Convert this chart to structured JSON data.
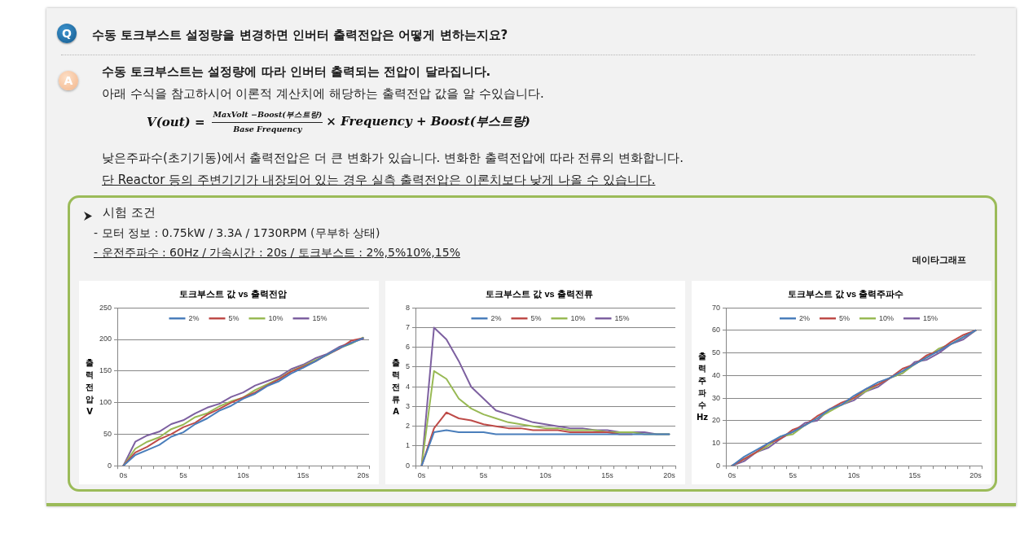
{
  "chart_data": [
    {
      "type": "other",
      "title": "수동 토크부스트 설정량을 변경하면 인버터 출력전압은 어떻게 변하는지요?",
      "subtitle": "수동 토크부스트는 설정량에 따라 인버터 출력되는 전압이 달라집니다.",
      "annotations": [
        "Q",
        "A",
        "아래 수식을 참고하시어 이론적 계산치에 해당하는 출력전압 값을 알 수있습니다.",
        "V(out) =",
        "MaxVolt −Boost(부스트량)",
        "Base Frequency",
        "× Frequency + Boost(부스트량)",
        "낮은주파수(초기기동)에서 출력전압은 더 큰 변화가 있습니다. 변화한 출력전압에 따라 전류의 변화합니다.",
        "단 Reactor 등의 주변기기가 내장되어 있는 경우 실측 출력전압은 이론치보다 낮게 나올 수 있습니다.",
        "시험 조건",
        "- 모터 정보 : 0.75kW / 3.3A / 1730RPM (무부하 상태)",
        "- 운전주파수 : 60Hz / 가속시간 : 20s / 토크부스트 : 2%,5%10%,15%",
        "데이타그래프"
      ]
    },
    {
      "type": "line",
      "title": "토크부스트 값 vs 출력전압",
      "ylabel": "출력전압 V",
      "categories": [
        "0s",
        null,
        null,
        null,
        null,
        "5s",
        null,
        null,
        null,
        null,
        "10s",
        null,
        null,
        null,
        null,
        "15s",
        null,
        null,
        null,
        null,
        "20s"
      ],
      "series": [
        {
          "name": "2%",
          "color": "#4a7ebb",
          "values": [
            0,
            17,
            25,
            33,
            46,
            53,
            66,
            75,
            87,
            95,
            106,
            114,
            126,
            134,
            146,
            155,
            165,
            176,
            186,
            194,
            202
          ]
        },
        {
          "name": "5%",
          "color": "#be4b48",
          "values": [
            0,
            21,
            30,
            42,
            50,
            61,
            68,
            81,
            90,
            100,
            108,
            116,
            127,
            137,
            149,
            157,
            165,
            176,
            185,
            198,
            202
          ]
        },
        {
          "name": "10%",
          "color": "#98b954",
          "values": [
            0,
            27,
            38,
            45,
            58,
            65,
            77,
            83,
            94,
            102,
            108,
            120,
            129,
            138,
            150,
            158,
            167,
            175,
            186,
            193,
            203
          ]
        },
        {
          "name": "15%",
          "color": "#7d60a0",
          "values": [
            0,
            38,
            48,
            54,
            66,
            72,
            83,
            92,
            98,
            109,
            116,
            127,
            134,
            141,
            153,
            160,
            170,
            177,
            188,
            195,
            201
          ]
        }
      ],
      "ylim": [
        0,
        250
      ],
      "yticks": [
        0,
        50,
        100,
        150,
        200,
        250
      ],
      "grid": "y",
      "legend": "top",
      "marker": "none"
    },
    {
      "type": "line",
      "title": "토크부스트 값 vs 출력전류",
      "ylabel": "출력전류 A",
      "categories": [
        "0s",
        null,
        null,
        null,
        null,
        "5s",
        null,
        null,
        null,
        null,
        "10s",
        null,
        null,
        null,
        null,
        "15s",
        null,
        null,
        null,
        null,
        "20s"
      ],
      "series": [
        {
          "name": "2%",
          "color": "#4a7ebb",
          "values": [
            0,
            1.7,
            1.8,
            1.7,
            1.7,
            1.7,
            1.6,
            1.6,
            1.6,
            1.6,
            1.6,
            1.6,
            1.6,
            1.6,
            1.6,
            1.6,
            1.6,
            1.6,
            1.6,
            1.6,
            1.6
          ]
        },
        {
          "name": "5%",
          "color": "#be4b48",
          "values": [
            0,
            1.9,
            2.7,
            2.4,
            2.3,
            2.1,
            2.0,
            1.9,
            1.9,
            1.8,
            1.8,
            1.8,
            1.7,
            1.7,
            1.7,
            1.7,
            1.6,
            1.6,
            null,
            null,
            null
          ]
        },
        {
          "name": "10%",
          "color": "#98b954",
          "values": [
            0,
            4.8,
            4.4,
            3.4,
            2.9,
            2.6,
            2.4,
            2.2,
            2.1,
            2.0,
            1.9,
            1.9,
            1.8,
            1.8,
            1.8,
            1.7,
            1.7,
            1.7,
            1.6,
            1.6,
            1.6
          ]
        },
        {
          "name": "15%",
          "color": "#7d60a0",
          "values": [
            0,
            7.0,
            6.4,
            5.3,
            4.0,
            3.4,
            2.8,
            2.6,
            2.4,
            2.2,
            2.1,
            2.0,
            1.9,
            1.9,
            1.8,
            1.8,
            1.7,
            1.7,
            1.7,
            1.6,
            1.6
          ]
        }
      ],
      "ylim": [
        0,
        8
      ],
      "yticks": [
        0,
        1,
        2,
        3,
        4,
        5,
        6,
        7,
        8
      ],
      "grid": "y",
      "legend": "top",
      "marker": "none"
    },
    {
      "type": "line",
      "title": "토크부스트 값 vs 출력주파수",
      "ylabel": "출력주파수 Hz",
      "categories": [
        "0s",
        null,
        null,
        null,
        null,
        "5s",
        null,
        null,
        null,
        null,
        "10s",
        null,
        null,
        null,
        null,
        "15s",
        null,
        null,
        null,
        null,
        "20s"
      ],
      "series": [
        {
          "name": "2%",
          "color": "#4a7ebb",
          "values": [
            0,
            4,
            7,
            10,
            13,
            15,
            18,
            21,
            25,
            27,
            31,
            34,
            37,
            39,
            42,
            45,
            48,
            51,
            54,
            57,
            60
          ]
        },
        {
          "name": "5%",
          "color": "#be4b48",
          "values": [
            0,
            3,
            6,
            10,
            12,
            16,
            18,
            22,
            25,
            28,
            30,
            34,
            36,
            39,
            43,
            45,
            49,
            51,
            55,
            58,
            60
          ]
        },
        {
          "name": "10%",
          "color": "#98b954",
          "values": [
            0,
            3,
            6,
            9,
            13,
            14,
            18,
            21,
            24,
            27,
            30,
            33,
            36,
            39,
            41,
            45,
            48,
            52,
            54,
            57,
            60
          ]
        },
        {
          "name": "15%",
          "color": "#7d60a0",
          "values": [
            0,
            2,
            6,
            8,
            12,
            15,
            19,
            20,
            25,
            27,
            29,
            33,
            35,
            39,
            41,
            46,
            47,
            50,
            54,
            56,
            60
          ]
        }
      ],
      "ylim": [
        0,
        70
      ],
      "yticks": [
        0,
        10,
        20,
        30,
        40,
        50,
        60,
        70
      ],
      "grid": "y",
      "legend": "top",
      "marker": "none"
    }
  ]
}
